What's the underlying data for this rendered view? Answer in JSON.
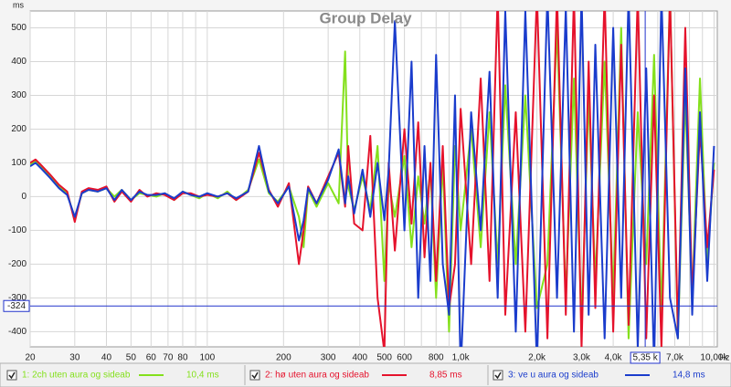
{
  "chart_data": {
    "type": "line",
    "title": "Group Delay",
    "y_unit": "ms",
    "x_unit": "Hz",
    "xscale": "log",
    "grid": true,
    "xlim": [
      20,
      10300
    ],
    "ylim": [
      -445,
      550
    ],
    "yticks": [
      500,
      400,
      300,
      200,
      100,
      0,
      -100,
      -200,
      -300,
      -400
    ],
    "xticks": [
      20,
      30,
      40,
      50,
      60,
      70,
      80,
      100,
      200,
      300,
      400,
      500,
      600,
      800,
      {
        "value": 1000,
        "label": "1,0k"
      },
      {
        "value": 2000,
        "label": "2,0k"
      },
      {
        "value": 3000,
        "label": "3,0k"
      },
      {
        "value": 4000,
        "label": "4,0k"
      },
      {
        "value": 7000,
        "label": "7,0k"
      },
      {
        "value": 10000,
        "label": "10,00k"
      }
    ],
    "xminor_ticks": [
      90,
      700,
      900,
      5000,
      6000,
      8000,
      9000
    ],
    "cursor": {
      "x": {
        "value": 5350,
        "label": "5,35 k"
      },
      "y": {
        "value": -324,
        "label": "-324"
      },
      "color": "#2233cc"
    },
    "x": [
      20,
      21,
      22,
      24,
      26,
      28,
      30,
      32,
      34,
      37,
      40,
      43,
      46,
      50,
      54,
      58,
      63,
      68,
      74,
      80,
      86,
      93,
      100,
      110,
      120,
      130,
      145,
      160,
      175,
      190,
      210,
      230,
      240,
      250,
      270,
      300,
      330,
      350,
      360,
      380,
      410,
      440,
      470,
      500,
      520,
      550,
      600,
      640,
      680,
      720,
      760,
      800,
      850,
      900,
      950,
      1000,
      1100,
      1200,
      1300,
      1400,
      1500,
      1650,
      1800,
      2000,
      2200,
      2400,
      2600,
      2800,
      3000,
      3200,
      3400,
      3700,
      4000,
      4300,
      4600,
      5000,
      5400,
      5800,
      6200,
      6700,
      7200,
      7700,
      8200,
      8800,
      9400,
      10000
    ],
    "series": [
      {
        "name": "1: 2ch uten aura og sideab",
        "legend_value": "10,4 ms",
        "color": "#84e01c",
        "values": [
          95,
          105,
          90,
          60,
          30,
          10,
          -65,
          10,
          20,
          15,
          25,
          0,
          20,
          -10,
          10,
          5,
          0,
          10,
          -10,
          15,
          5,
          -5,
          10,
          -5,
          15,
          -10,
          20,
          110,
          10,
          -15,
          30,
          -60,
          -150,
          20,
          -30,
          40,
          -20,
          430,
          30,
          -40,
          60,
          -40,
          150,
          -250,
          40,
          -60,
          120,
          -150,
          60,
          -80,
          80,
          -300,
          100,
          -400,
          150,
          -100,
          200,
          -150,
          250,
          -200,
          330,
          -200,
          300,
          -330,
          -200,
          500,
          -300,
          350,
          -380,
          300,
          -250,
          400,
          -300,
          500,
          -420,
          250,
          -200,
          420,
          -350,
          600,
          -420,
          300,
          -300,
          350,
          -200,
          100
        ]
      },
      {
        "name": "2: hø uten aura og sideab",
        "legend_value": "8,85 ms",
        "color": "#e5122c",
        "values": [
          100,
          110,
          95,
          65,
          35,
          15,
          -75,
          15,
          25,
          20,
          30,
          -15,
          15,
          -15,
          20,
          0,
          10,
          5,
          -10,
          10,
          10,
          0,
          5,
          0,
          10,
          -10,
          15,
          130,
          20,
          -30,
          40,
          -200,
          -100,
          30,
          -20,
          60,
          130,
          -30,
          150,
          -80,
          -100,
          180,
          -300,
          -460,
          100,
          -160,
          200,
          -80,
          220,
          -180,
          100,
          -250,
          150,
          -330,
          -200,
          260,
          -200,
          350,
          -250,
          600,
          -350,
          250,
          -400,
          600,
          -420,
          600,
          -350,
          600,
          -450,
          400,
          -330,
          600,
          -400,
          450,
          -380,
          600,
          -420,
          300,
          -450,
          600,
          -400,
          500,
          -300,
          200,
          -150,
          80
        ]
      },
      {
        "name": "3: ve u aura og sideab",
        "legend_value": "14,8 ms",
        "color": "#1a3ccc",
        "values": [
          90,
          100,
          85,
          55,
          25,
          5,
          -60,
          10,
          20,
          15,
          25,
          -10,
          20,
          -10,
          15,
          5,
          5,
          10,
          -5,
          15,
          5,
          0,
          10,
          0,
          10,
          -5,
          15,
          150,
          15,
          -20,
          30,
          -130,
          -70,
          25,
          -20,
          50,
          140,
          -20,
          60,
          -50,
          80,
          -60,
          100,
          -70,
          80,
          520,
          -100,
          400,
          -300,
          150,
          -250,
          420,
          -200,
          -350,
          300,
          -520,
          250,
          -100,
          370,
          -300,
          550,
          -400,
          550,
          -500,
          600,
          -300,
          560,
          -400,
          600,
          -350,
          450,
          -420,
          500,
          -300,
          600,
          -450,
          380,
          -500,
          600,
          -300,
          -420,
          380,
          -350,
          250,
          -250,
          150
        ]
      }
    ]
  }
}
